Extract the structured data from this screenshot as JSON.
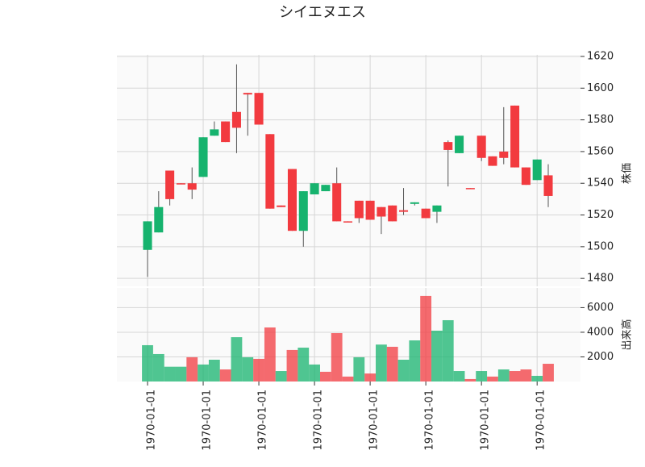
{
  "chart_data": {
    "type": "candlestick",
    "title": "シイエヌエス",
    "categories": [
      "1970-01-01",
      null,
      null,
      null,
      null,
      "1970-01-01",
      null,
      null,
      null,
      null,
      "1970-01-01",
      null,
      null,
      null,
      null,
      "1970-01-01",
      null,
      null,
      null,
      null,
      "1970-01-01",
      null,
      null,
      null,
      null,
      "1970-01-01",
      null,
      null,
      null,
      null,
      "1970-01-01",
      null,
      null,
      null,
      null,
      "1970-01-01",
      null
    ],
    "open": [
      1498,
      1509,
      1548,
      1540,
      1540,
      1544,
      1570,
      1579,
      1585,
      1597,
      1597,
      1571,
      1526,
      1549,
      1510,
      1533,
      1535,
      1540,
      1516,
      1529,
      1529,
      1525,
      1526,
      1523,
      1527,
      1524,
      1522,
      1566,
      1559,
      1537,
      1570,
      1557,
      1560,
      1589,
      1550,
      1542,
      1545
    ],
    "high": [
      1516,
      1535,
      1548,
      1540,
      1550,
      1569,
      1579,
      1579,
      1615,
      1597,
      1597,
      1571,
      1526,
      1549,
      1535,
      1540,
      1539,
      1550,
      1516,
      1529,
      1529,
      1525,
      1526,
      1537,
      1528,
      1524,
      1526,
      1567,
      1570,
      1537,
      1570,
      1557,
      1588,
      1589,
      1550,
      1555,
      1552
    ],
    "low": [
      1481,
      1509,
      1526,
      1539.5,
      1530,
      1544,
      1570,
      1566,
      1559,
      1570,
      1577,
      1524,
      1525,
      1510,
      1500,
      1533,
      1535,
      1516,
      1515.5,
      1515,
      1517,
      1508,
      1516,
      1520,
      1526,
      1518,
      1515,
      1538,
      1559,
      1536.5,
      1554,
      1551,
      1552,
      1550,
      1539,
      1542,
      1525
    ],
    "close": [
      1516,
      1525,
      1530,
      1539.5,
      1536,
      1569,
      1574,
      1566,
      1575,
      1596,
      1577,
      1524,
      1525,
      1510,
      1535,
      1540,
      1539,
      1516,
      1515.5,
      1518,
      1517,
      1519,
      1516,
      1522,
      1528,
      1518,
      1526,
      1561,
      1570,
      1536.5,
      1556,
      1551,
      1556,
      1550,
      1539,
      1555,
      1532
    ],
    "volume": [
      2950,
      2230,
      1200,
      1200,
      1970,
      1380,
      1770,
      980,
      3600,
      1970,
      1840,
      4390,
      850,
      2560,
      2750,
      1380,
      790,
      3930,
      400,
      1970,
      650,
      3000,
      2820,
      1770,
      3340,
      6950,
      4130,
      4980,
      850,
      200,
      850,
      400,
      980,
      850,
      980,
      460,
      1440
    ],
    "ylim": [
      1475,
      1621
    ],
    "yticks": [
      1480,
      1500,
      1520,
      1540,
      1560,
      1580,
      1600,
      1620
    ],
    "ylabel": "株価",
    "vlim": [
      0,
      7600
    ],
    "vticks": [
      2000,
      4000,
      6000
    ],
    "vlabel": "出来高",
    "up_color": "#16b36e",
    "down_color": "#f23a3f",
    "grid": true
  }
}
